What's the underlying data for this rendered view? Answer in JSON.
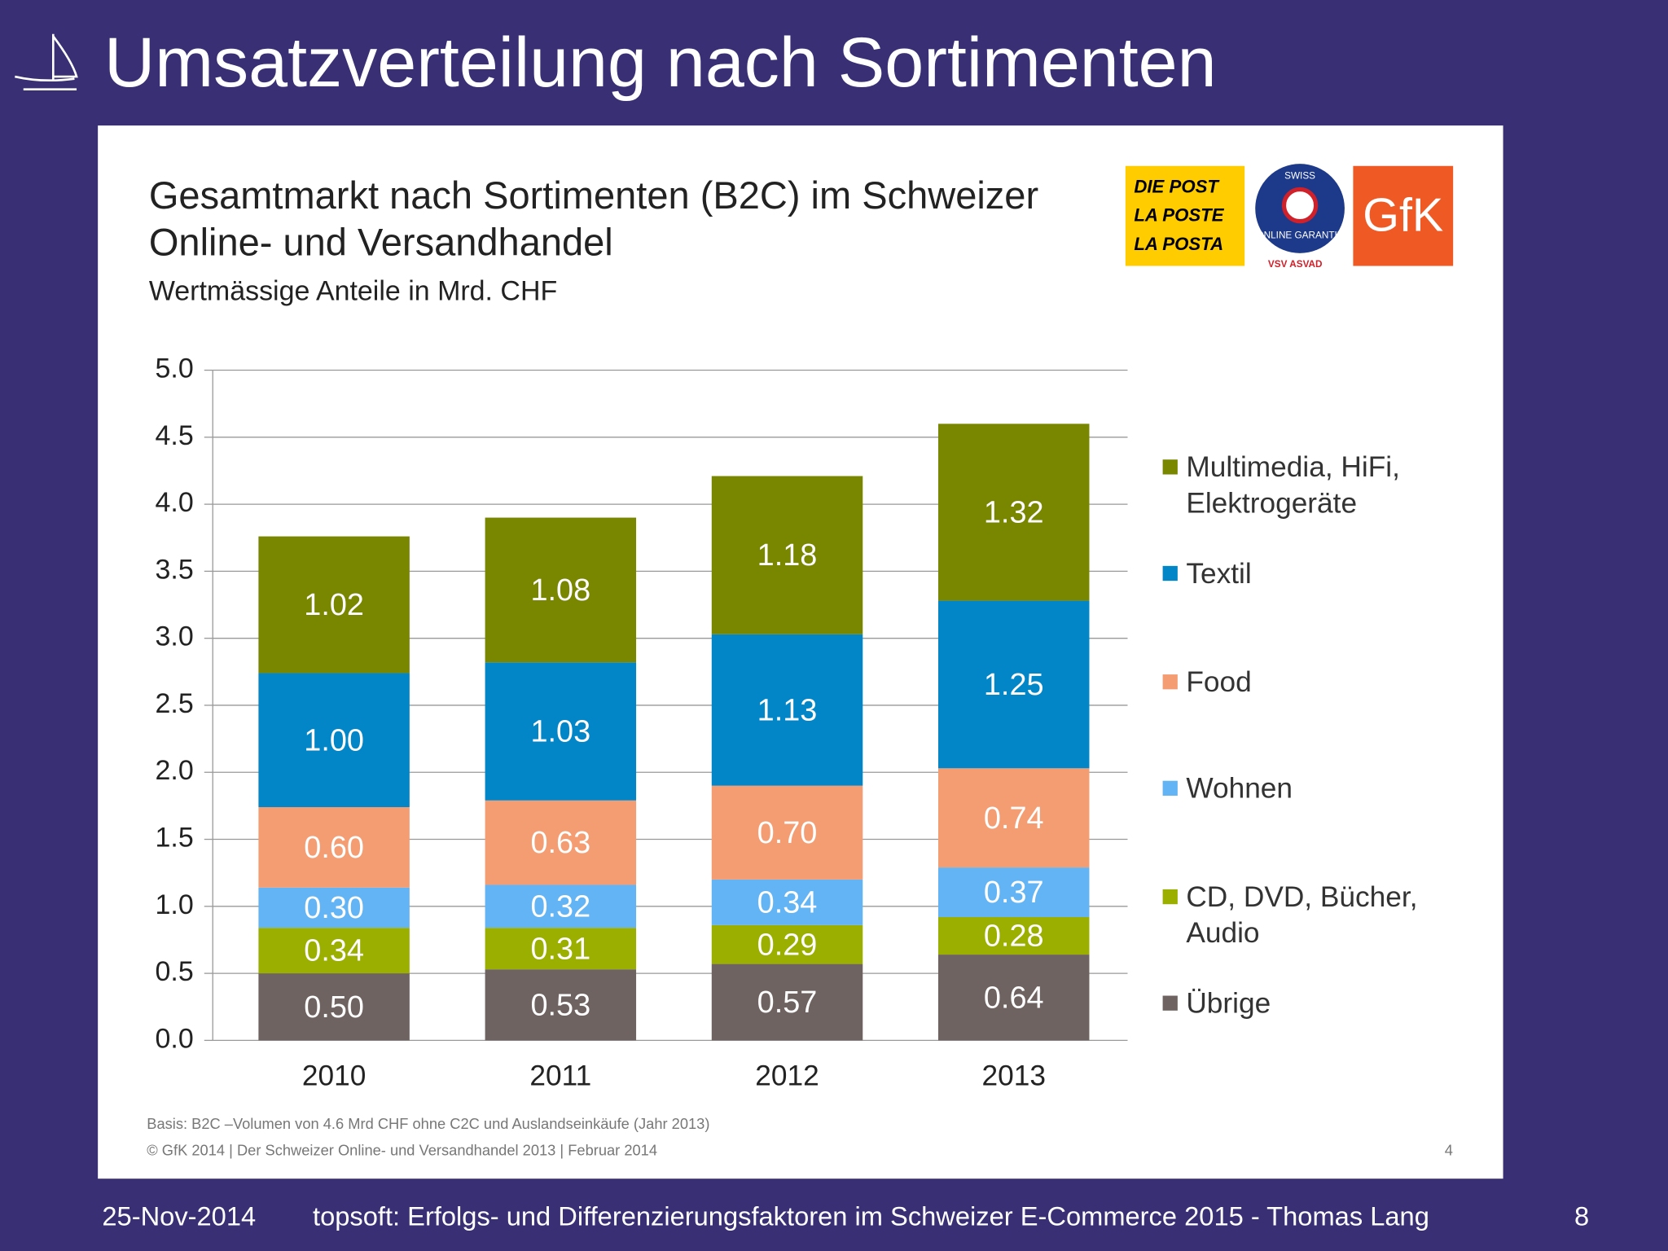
{
  "slide": {
    "title": "Umsatzverteilung nach Sortimenten",
    "footer_date": "25-Nov-2014",
    "footer_text": "topsoft: Erfolgs- und Differenzierungsfaktoren im Schweizer E-Commerce 2015 - Thomas Lang",
    "page_number": "8",
    "logos": {
      "post": [
        "DIE POST",
        "LA POSTE",
        "LA POSTA"
      ],
      "garantie": [
        "SWISS",
        "ONLINE GARANTIE",
        "VSV ASVAD"
      ],
      "gfk": "GfK"
    },
    "footnote_1": "Basis: B2C –Volumen von 4.6 Mrd CHF ohne C2C und Auslandseinkäufe (Jahr 2013)",
    "footnote_2": "© GfK 2014 | Der Schweizer Online- und Versandhandel 2013 | Februar 2014",
    "inner_page": "4"
  },
  "chart_data": {
    "type": "stacked_bar",
    "title": "Gesamtmarkt nach Sortimenten (B2C) im Schweizer Online- und Versandhandel",
    "subtitle": "Wertmässige Anteile in Mrd. CHF",
    "categories": [
      "2010",
      "2011",
      "2012",
      "2013"
    ],
    "series": [
      {
        "name": "Übrige",
        "color": "#6e6360",
        "values": [
          0.5,
          0.53,
          0.57,
          0.64
        ],
        "value_labels": [
          "0.50",
          "0.53",
          "0.57",
          "0.64"
        ]
      },
      {
        "name": "CD, DVD, Bücher, Audio",
        "color": "#9aaf00",
        "values": [
          0.34,
          0.31,
          0.29,
          0.28
        ],
        "value_labels": [
          "0.34",
          "0.31",
          "0.29",
          "0.28"
        ]
      },
      {
        "name": "Wohnen",
        "color": "#63b4f5",
        "values": [
          0.3,
          0.32,
          0.34,
          0.37
        ],
        "value_labels": [
          "0.30",
          "0.32",
          "0.34",
          "0.37"
        ]
      },
      {
        "name": "Food",
        "color": "#f59d72",
        "values": [
          0.6,
          0.63,
          0.7,
          0.74
        ],
        "value_labels": [
          "0.60",
          "0.63",
          "0.70",
          "0.74"
        ]
      },
      {
        "name": "Textil",
        "color": "#0386c8",
        "values": [
          1.0,
          1.03,
          1.13,
          1.25
        ],
        "value_labels": [
          "1.00",
          "1.03",
          "1.13",
          "1.25"
        ]
      },
      {
        "name": "Multimedia, HiFi, Elektrogeräte",
        "color": "#788600",
        "values": [
          1.02,
          1.08,
          1.18,
          1.32
        ],
        "value_labels": [
          "1.02",
          "1.08",
          "1.18",
          "1.32"
        ]
      }
    ],
    "ylim": [
      0,
      5
    ],
    "yticks": [
      {
        "value": 0,
        "label": "0.0"
      },
      {
        "value": 0.5,
        "label": "0.5"
      },
      {
        "value": 1,
        "label": "1.0"
      },
      {
        "value": 1.5,
        "label": "1.5"
      },
      {
        "value": 2,
        "label": "2.0"
      },
      {
        "value": 2.5,
        "label": "2.5"
      },
      {
        "value": 3,
        "label": "3.0"
      },
      {
        "value": 3.5,
        "label": "3.5"
      },
      {
        "value": 4,
        "label": "4.0"
      },
      {
        "value": 4.5,
        "label": "4.5"
      },
      {
        "value": 5,
        "label": "5.0"
      }
    ],
    "grid": true,
    "legend": "right"
  }
}
